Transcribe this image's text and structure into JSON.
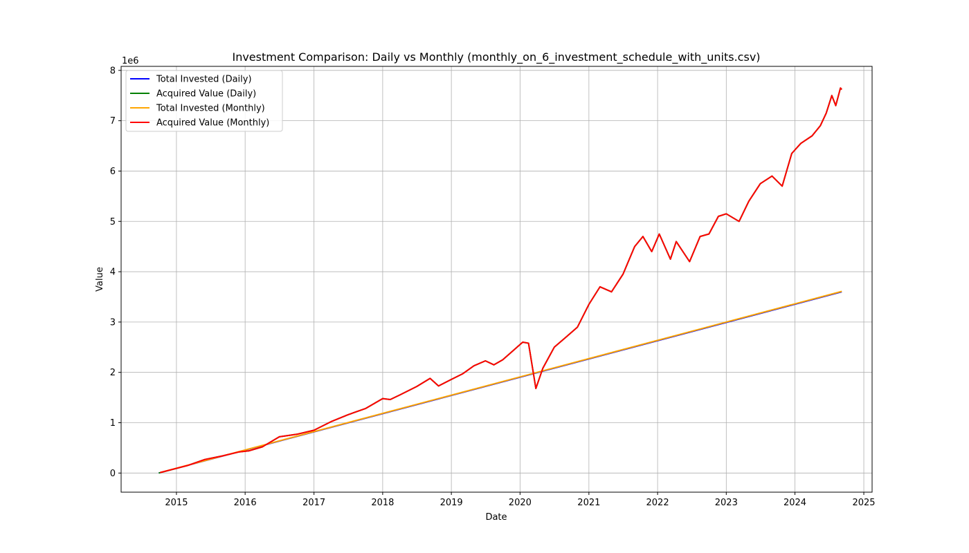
{
  "chart_data": {
    "type": "line",
    "title": "Investment Comparison: Daily vs Monthly (monthly_on_6_investment_schedule_with_units.csv)",
    "xlabel": "Date",
    "ylabel": "Value",
    "y_offset_label": "1e6",
    "xlim": [
      "2014-03-13",
      "2025-02-14"
    ],
    "ylim": [
      -0.38,
      8.08
    ],
    "x_ticks": [
      "2015",
      "2016",
      "2017",
      "2018",
      "2019",
      "2020",
      "2021",
      "2022",
      "2023",
      "2024",
      "2025"
    ],
    "y_ticks": [
      0,
      1,
      2,
      3,
      4,
      5,
      6,
      7,
      8
    ],
    "grid": true,
    "legend_position": "top-left",
    "series": [
      {
        "name": "Total Invested (Daily)",
        "color": "#0000ff",
        "points": [
          [
            "2014-09-29",
            0.0
          ],
          [
            "2024-09-06",
            3.6
          ]
        ]
      },
      {
        "name": "Acquired Value (Daily)",
        "color": "#008000",
        "points": [
          [
            "2014-09-29",
            0.0
          ],
          [
            "2015-03-01",
            0.15
          ],
          [
            "2015-06-01",
            0.27
          ],
          [
            "2015-09-01",
            0.34
          ],
          [
            "2015-12-01",
            0.42
          ],
          [
            "2016-01-20",
            0.44
          ],
          [
            "2016-04-01",
            0.52
          ],
          [
            "2016-07-01",
            0.72
          ],
          [
            "2016-10-01",
            0.77
          ],
          [
            "2017-01-01",
            0.85
          ],
          [
            "2017-04-01",
            1.02
          ],
          [
            "2017-07-01",
            1.16
          ],
          [
            "2017-10-01",
            1.28
          ],
          [
            "2018-01-01",
            1.48
          ],
          [
            "2018-02-10",
            1.46
          ],
          [
            "2018-04-01",
            1.55
          ],
          [
            "2018-07-01",
            1.72
          ],
          [
            "2018-09-10",
            1.88
          ],
          [
            "2018-10-25",
            1.73
          ],
          [
            "2019-01-01",
            1.86
          ],
          [
            "2019-03-01",
            1.97
          ],
          [
            "2019-05-01",
            2.13
          ],
          [
            "2019-07-01",
            2.23
          ],
          [
            "2019-08-15",
            2.15
          ],
          [
            "2019-10-01",
            2.25
          ],
          [
            "2019-12-01",
            2.45
          ],
          [
            "2020-01-15",
            2.6
          ],
          [
            "2020-02-15",
            2.58
          ],
          [
            "2020-03-25",
            1.68
          ],
          [
            "2020-05-01",
            2.08
          ],
          [
            "2020-07-01",
            2.5
          ],
          [
            "2020-09-01",
            2.7
          ],
          [
            "2020-11-01",
            2.9
          ],
          [
            "2021-01-01",
            3.35
          ],
          [
            "2021-03-01",
            3.7
          ],
          [
            "2021-05-01",
            3.6
          ],
          [
            "2021-07-01",
            3.95
          ],
          [
            "2021-09-01",
            4.5
          ],
          [
            "2021-10-15",
            4.7
          ],
          [
            "2021-12-01",
            4.4
          ],
          [
            "2022-01-10",
            4.75
          ],
          [
            "2022-03-10",
            4.25
          ],
          [
            "2022-04-10",
            4.6
          ],
          [
            "2022-06-20",
            4.2
          ],
          [
            "2022-08-15",
            4.7
          ],
          [
            "2022-10-01",
            4.75
          ],
          [
            "2022-11-20",
            5.1
          ],
          [
            "2023-01-01",
            5.15
          ],
          [
            "2023-03-10",
            5.0
          ],
          [
            "2023-05-01",
            5.4
          ],
          [
            "2023-07-01",
            5.75
          ],
          [
            "2023-09-01",
            5.9
          ],
          [
            "2023-10-25",
            5.7
          ],
          [
            "2023-12-15",
            6.35
          ],
          [
            "2024-02-01",
            6.55
          ],
          [
            "2024-04-01",
            6.7
          ],
          [
            "2024-05-15",
            6.9
          ],
          [
            "2024-06-15",
            7.15
          ],
          [
            "2024-07-15",
            7.5
          ],
          [
            "2024-08-05",
            7.3
          ],
          [
            "2024-08-30",
            7.65
          ],
          [
            "2024-09-06",
            7.62
          ]
        ]
      },
      {
        "name": "Total Invested (Monthly)",
        "color": "#ffa500",
        "points": [
          [
            "2014-10-06",
            0.01
          ],
          [
            "2024-09-06",
            3.61
          ]
        ]
      },
      {
        "name": "Acquired Value (Monthly)",
        "color": "#ff0000",
        "points": [
          [
            "2014-10-06",
            0.01
          ],
          [
            "2015-03-01",
            0.15
          ],
          [
            "2015-06-01",
            0.27
          ],
          [
            "2015-09-01",
            0.34
          ],
          [
            "2015-12-01",
            0.42
          ],
          [
            "2016-01-20",
            0.44
          ],
          [
            "2016-04-01",
            0.52
          ],
          [
            "2016-07-01",
            0.72
          ],
          [
            "2016-10-01",
            0.77
          ],
          [
            "2017-01-01",
            0.85
          ],
          [
            "2017-04-01",
            1.02
          ],
          [
            "2017-07-01",
            1.16
          ],
          [
            "2017-10-01",
            1.28
          ],
          [
            "2018-01-01",
            1.48
          ],
          [
            "2018-02-10",
            1.46
          ],
          [
            "2018-04-01",
            1.55
          ],
          [
            "2018-07-01",
            1.72
          ],
          [
            "2018-09-10",
            1.88
          ],
          [
            "2018-10-25",
            1.73
          ],
          [
            "2019-01-01",
            1.86
          ],
          [
            "2019-03-01",
            1.97
          ],
          [
            "2019-05-01",
            2.13
          ],
          [
            "2019-07-01",
            2.23
          ],
          [
            "2019-08-15",
            2.15
          ],
          [
            "2019-10-01",
            2.25
          ],
          [
            "2019-12-01",
            2.45
          ],
          [
            "2020-01-15",
            2.6
          ],
          [
            "2020-02-15",
            2.58
          ],
          [
            "2020-03-25",
            1.68
          ],
          [
            "2020-05-01",
            2.08
          ],
          [
            "2020-07-01",
            2.5
          ],
          [
            "2020-09-01",
            2.7
          ],
          [
            "2020-11-01",
            2.9
          ],
          [
            "2021-01-01",
            3.35
          ],
          [
            "2021-03-01",
            3.7
          ],
          [
            "2021-05-01",
            3.6
          ],
          [
            "2021-07-01",
            3.95
          ],
          [
            "2021-09-01",
            4.5
          ],
          [
            "2021-10-15",
            4.7
          ],
          [
            "2021-12-01",
            4.4
          ],
          [
            "2022-01-10",
            4.75
          ],
          [
            "2022-03-10",
            4.25
          ],
          [
            "2022-04-10",
            4.6
          ],
          [
            "2022-06-20",
            4.2
          ],
          [
            "2022-08-15",
            4.7
          ],
          [
            "2022-10-01",
            4.75
          ],
          [
            "2022-11-20",
            5.1
          ],
          [
            "2023-01-01",
            5.15
          ],
          [
            "2023-03-10",
            5.0
          ],
          [
            "2023-05-01",
            5.4
          ],
          [
            "2023-07-01",
            5.75
          ],
          [
            "2023-09-01",
            5.9
          ],
          [
            "2023-10-25",
            5.7
          ],
          [
            "2023-12-15",
            6.35
          ],
          [
            "2024-02-01",
            6.55
          ],
          [
            "2024-04-01",
            6.7
          ],
          [
            "2024-05-15",
            6.9
          ],
          [
            "2024-06-15",
            7.15
          ],
          [
            "2024-07-15",
            7.5
          ],
          [
            "2024-08-05",
            7.3
          ],
          [
            "2024-08-30",
            7.65
          ],
          [
            "2024-09-06",
            7.62
          ]
        ]
      }
    ]
  }
}
